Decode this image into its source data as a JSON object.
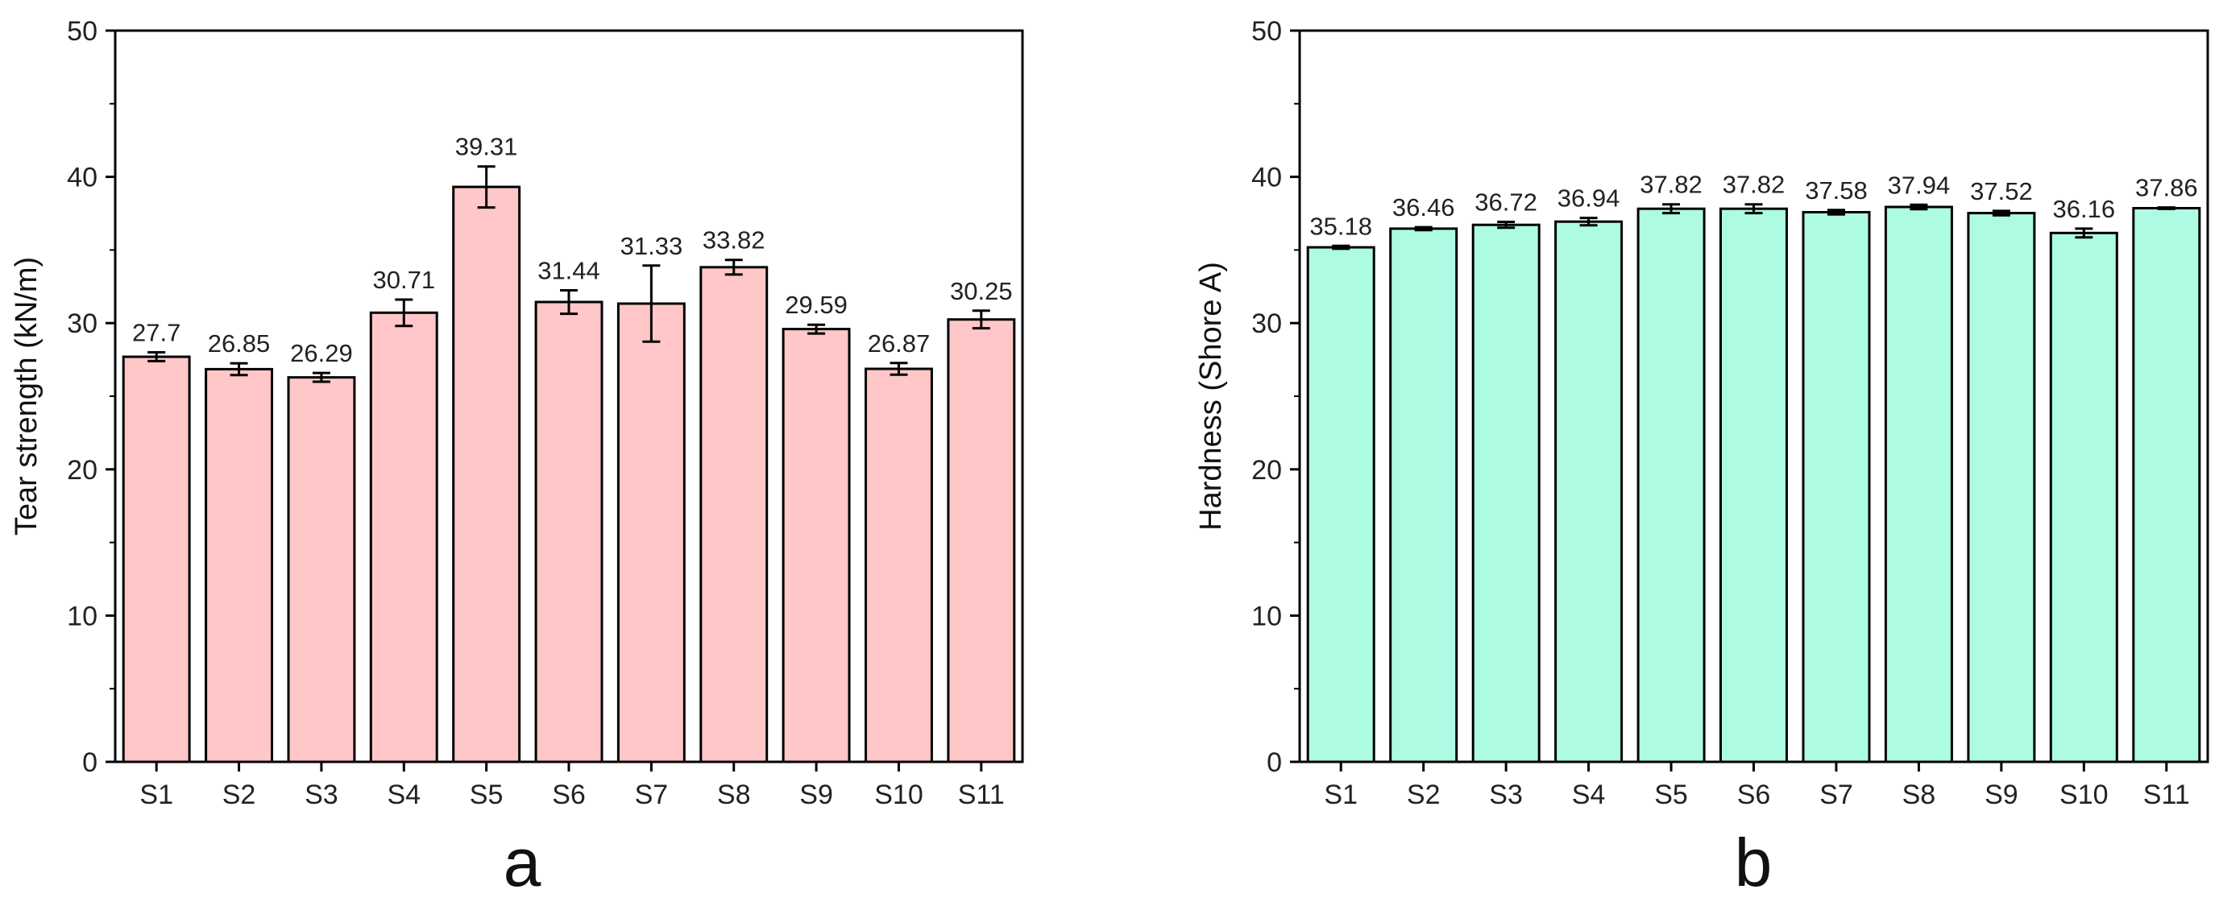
{
  "chart_data": [
    {
      "type": "bar",
      "panel_label": "a",
      "categories": [
        "S1",
        "S2",
        "S3",
        "S4",
        "S5",
        "S6",
        "S7",
        "S8",
        "S9",
        "S10",
        "S11"
      ],
      "values": [
        27.7,
        26.85,
        26.29,
        30.71,
        39.31,
        31.44,
        31.33,
        33.82,
        29.59,
        26.87,
        30.25
      ],
      "value_labels": [
        "27.7",
        "26.85",
        "26.29",
        "30.71",
        "39.31",
        "31.44",
        "31.33",
        "33.82",
        "29.59",
        "26.87",
        "30.25"
      ],
      "errors": [
        0.3,
        0.4,
        0.3,
        0.9,
        1.4,
        0.8,
        2.6,
        0.5,
        0.3,
        0.4,
        0.6
      ],
      "ylabel": "Tear strength (kN/m)",
      "xlabel": "",
      "ylim": [
        0,
        50
      ],
      "yticks": [
        0,
        10,
        20,
        30,
        40,
        50
      ],
      "bar_color": "#ffc7c7",
      "grid": false
    },
    {
      "type": "bar",
      "panel_label": "b",
      "categories": [
        "S1",
        "S2",
        "S3",
        "S4",
        "S5",
        "S6",
        "S7",
        "S8",
        "S9",
        "S10",
        "S11"
      ],
      "values": [
        35.18,
        36.46,
        36.72,
        36.94,
        37.82,
        37.82,
        37.58,
        37.94,
        37.52,
        36.16,
        37.86
      ],
      "value_labels": [
        "35.18",
        "36.46",
        "36.72",
        "36.94",
        "37.82",
        "37.82",
        "37.58",
        "37.94",
        "37.52",
        "36.16",
        "37.86"
      ],
      "errors": [
        0.1,
        0.1,
        0.2,
        0.25,
        0.3,
        0.3,
        0.15,
        0.15,
        0.15,
        0.3,
        0.05
      ],
      "ylabel": "Hardness (Shore A)",
      "xlabel": "",
      "ylim": [
        0,
        50
      ],
      "yticks": [
        0,
        10,
        20,
        30,
        40,
        50
      ],
      "bar_color": "#adfbe3",
      "grid": false
    }
  ]
}
